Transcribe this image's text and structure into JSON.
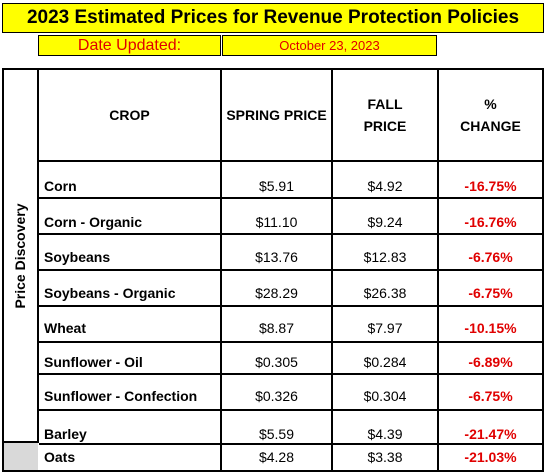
{
  "title": "2023 Estimated Prices for Revenue Protection Policies",
  "date_label": "Date Updated:",
  "date_value": "October 23, 2023",
  "side_label": "Price Discovery",
  "headers": {
    "crop": "CROP",
    "spring": "SPRING PRICE",
    "fall_line1": "FALL",
    "fall_line2": "PRICE",
    "change_line1": "%",
    "change_line2": "CHANGE"
  },
  "rows": [
    {
      "crop": "Corn",
      "spring": "$5.91",
      "fall": "$4.92",
      "change": "-16.75%"
    },
    {
      "crop": "Corn - Organic",
      "spring": "$11.10",
      "fall": "$9.24",
      "change": "-16.76%"
    },
    {
      "crop": "Soybeans",
      "spring": "$13.76",
      "fall": "$12.83",
      "change": "-6.76%"
    },
    {
      "crop": "Soybeans - Organic",
      "spring": "$28.29",
      "fall": "$26.38",
      "change": "-6.75%"
    },
    {
      "crop": "Wheat",
      "spring": "$8.87",
      "fall": "$7.97",
      "change": "-10.15%"
    },
    {
      "crop": "Sunflower - Oil",
      "spring": "$0.305",
      "fall": "$0.284",
      "change": "-6.89%"
    },
    {
      "crop": "Sunflower - Confection",
      "spring": "$0.326",
      "fall": "$0.304",
      "change": "-6.75%"
    },
    {
      "crop": "Barley",
      "spring": "$5.59",
      "fall": "$4.39",
      "change": "-21.47%"
    },
    {
      "crop": "Oats",
      "spring": "$4.28",
      "fall": "$3.38",
      "change": "-21.03%"
    }
  ],
  "colors": {
    "highlight": "#ffff00",
    "negative": "#e00000",
    "grey": "#d9d9d9"
  }
}
